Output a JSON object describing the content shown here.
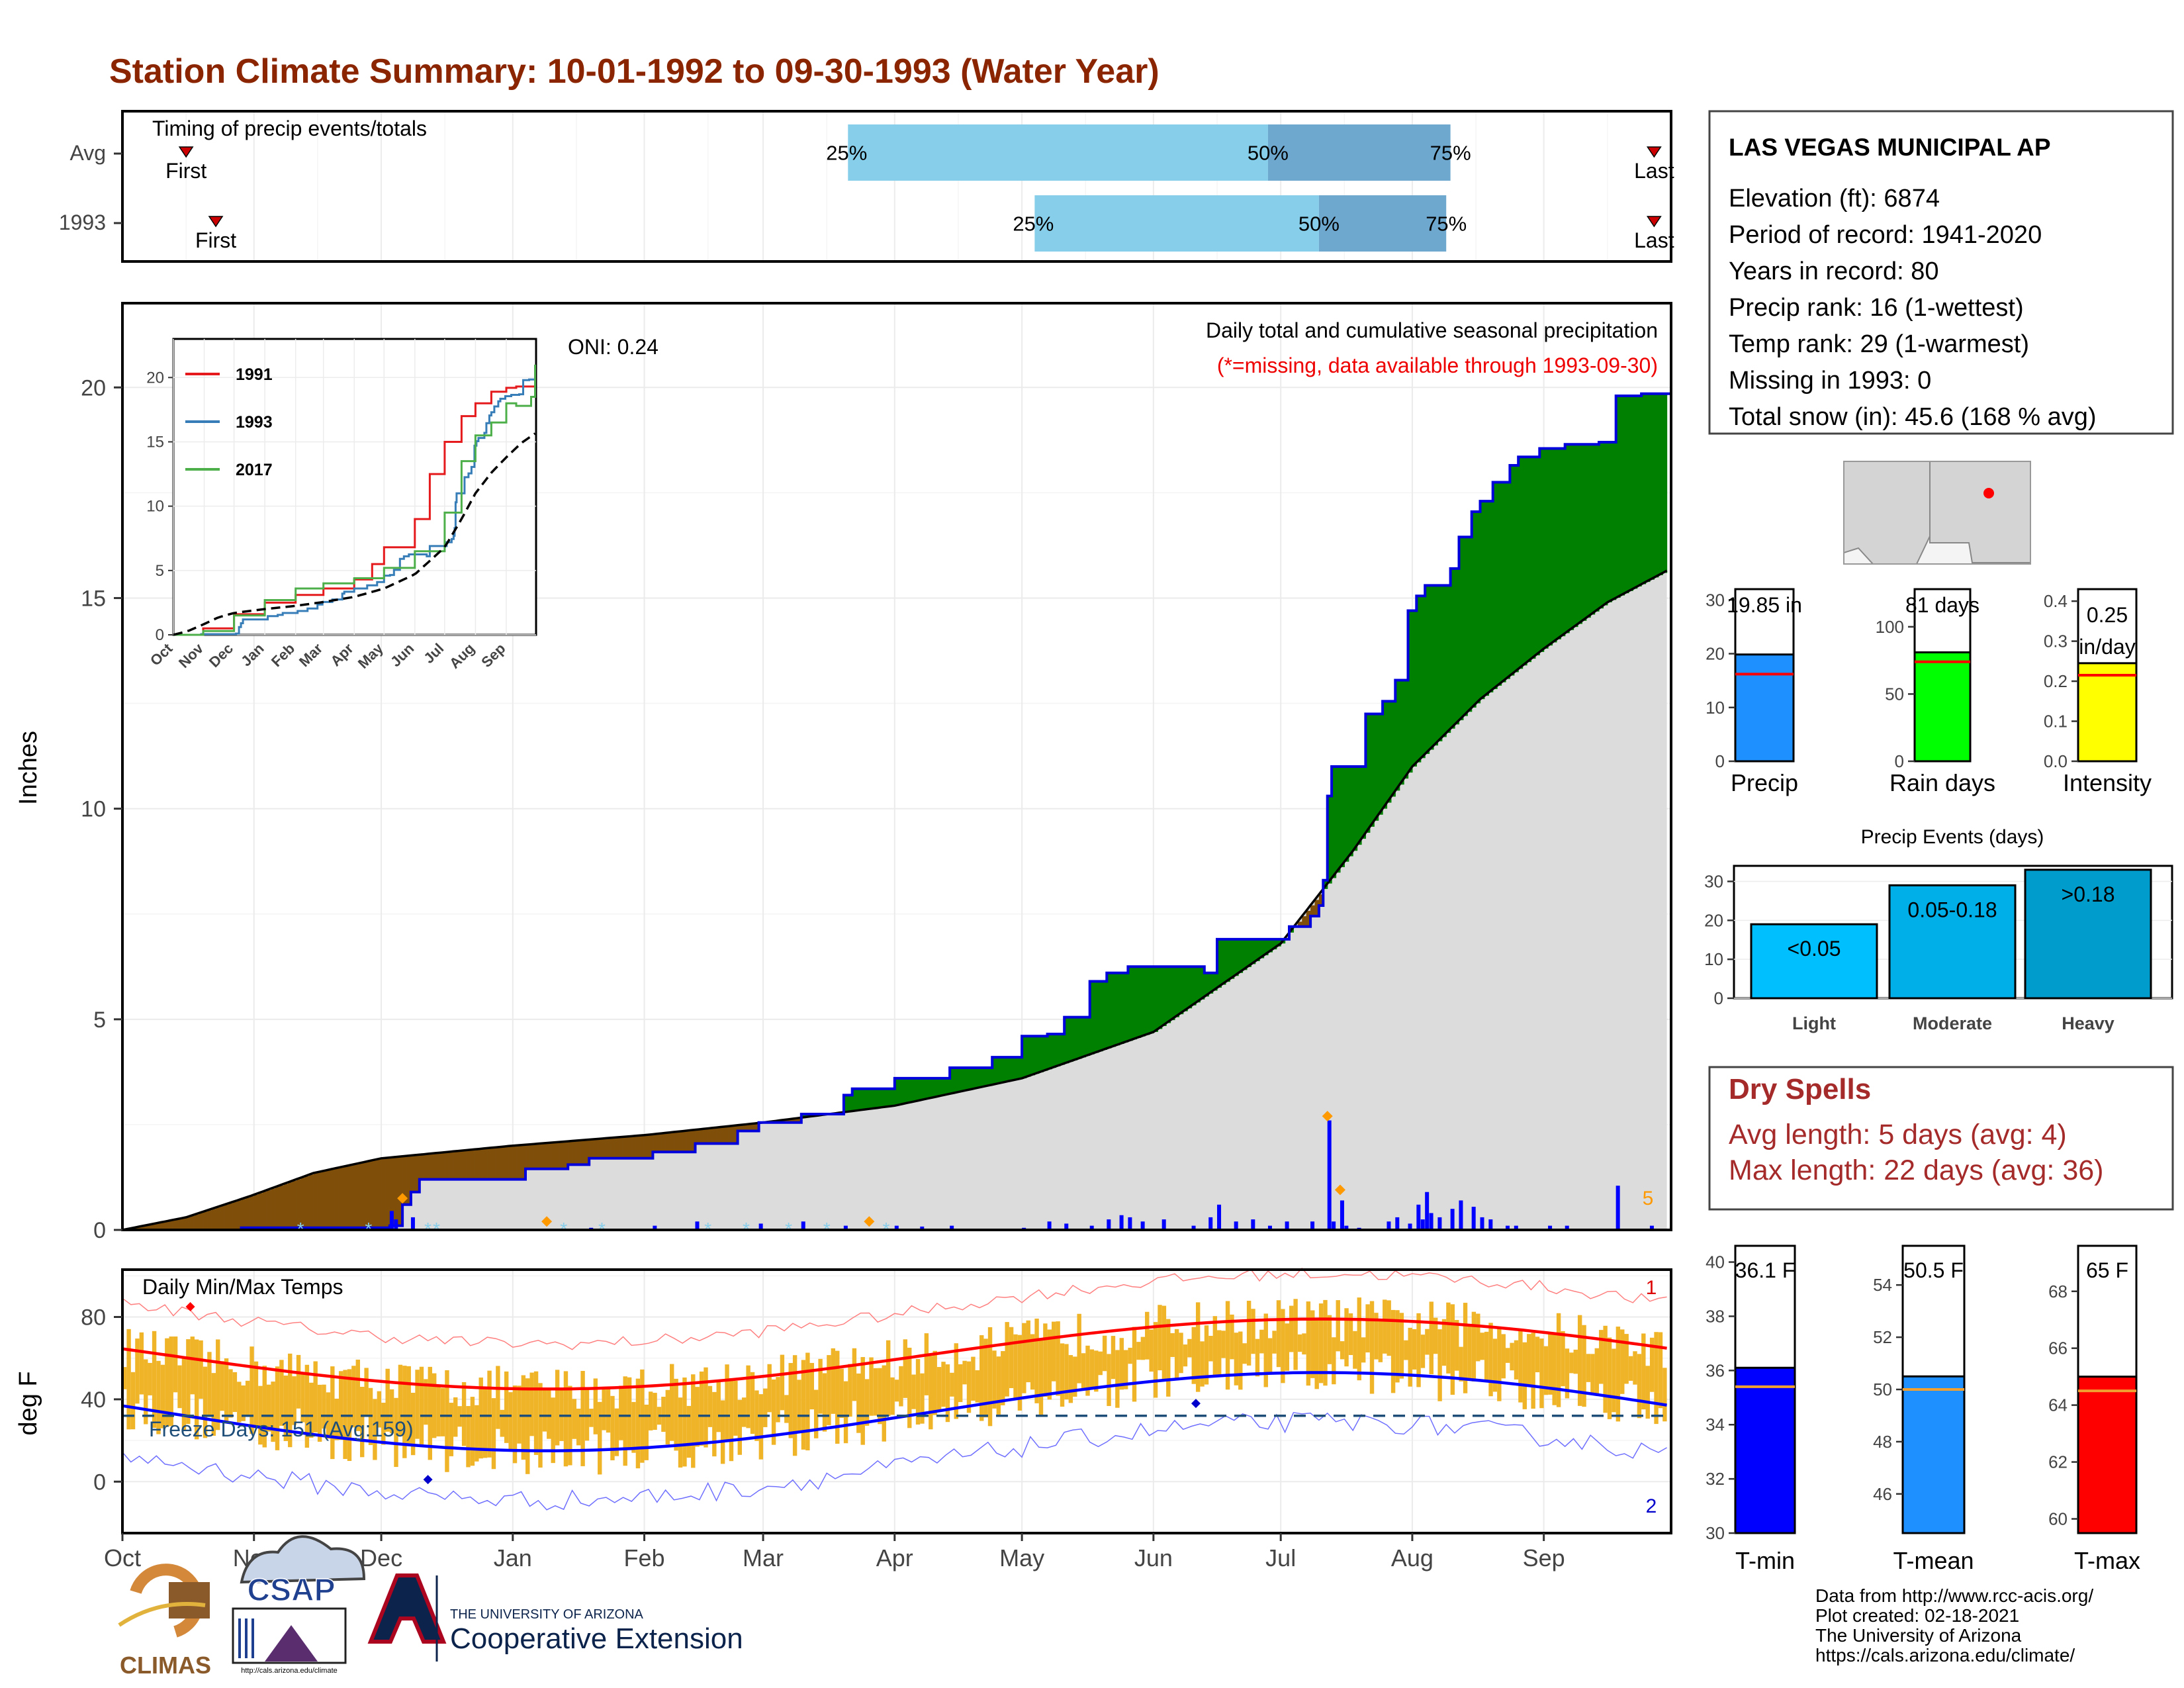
{
  "title": "Station Climate Summary: 10-01-1992 to 09-30-1993 (Water Year)",
  "timing": {
    "label": "Timing of precip events/totals",
    "rows": [
      {
        "name": "Avg",
        "first_label": "First",
        "last_label": "Last",
        "first_date": "1992-10-16",
        "last_date": "1993-09-27",
        "p25_date": "1993-03-21",
        "p50_date": "1993-06-28",
        "p75_date": "1993-08-10"
      },
      {
        "name": "1993",
        "first_label": "First",
        "last_label": "Last",
        "first_date": "1992-10-23",
        "last_date": "1993-09-27",
        "p25_date": "1993-05-04",
        "p50_date": "1993-07-10",
        "p75_date": "1993-08-09"
      }
    ],
    "pct_labels": [
      "25%",
      "50%",
      "75%"
    ],
    "colors": {
      "q1": "#87ceeb",
      "q2": "#6fa8cf",
      "marker": "#cc0000"
    }
  },
  "precip_panel": {
    "ylabel": "Inches",
    "oni": "ONI: 0.24",
    "note1": "Daily total and cumulative seasonal precipitation",
    "note2": "(*=missing, data available through 1993-09-30)",
    "max_label": "5",
    "ylim": [
      0,
      22
    ],
    "yticks": [
      0,
      5,
      10,
      15,
      20
    ],
    "colors": {
      "observed_line": "#0000dd",
      "above": "#008000",
      "below": "#7f4f0a",
      "avg_fill": "#dcdcdc",
      "bars": "#0000ff",
      "marker": "#ff9900"
    }
  },
  "inset": {
    "legend": [
      "1991",
      "1993",
      "2017"
    ],
    "colors": [
      "#e41a1c",
      "#377eb8",
      "#4daf4a"
    ],
    "xticks": [
      "Oct",
      "Nov",
      "Dec",
      "Jan",
      "Feb",
      "Mar",
      "Apr",
      "May",
      "Jun",
      "Jul",
      "Aug",
      "Sep"
    ],
    "yticks": [
      0,
      5,
      10,
      15,
      20
    ],
    "ylim": [
      0,
      23
    ]
  },
  "temp_panel": {
    "ylabel": "deg F",
    "title": "Daily Min/Max Temps",
    "freeze": "Freeze Days: 151 (Avg:159)",
    "label_top": "1",
    "label_bottom": "2",
    "yticks": [
      0,
      40,
      80
    ],
    "ylim": [
      -25,
      103
    ],
    "freeze_line": 32,
    "colors": {
      "bars": "#f0b429",
      "tmax": "#ff0000",
      "tmin": "#0000ff",
      "freeze": "#1f4e79"
    }
  },
  "xaxis": [
    "Oct",
    "Nov",
    "Dec",
    "Jan",
    "Feb",
    "Mar",
    "Apr",
    "May",
    "Jun",
    "Jul",
    "Aug",
    "Sep"
  ],
  "info": {
    "station": "LAS VEGAS MUNICIPAL AP",
    "lines": [
      "Elevation (ft): 6874",
      "Period of record: 1941-2020",
      "Years in record: 80",
      "Precip rank: 16 (1-wettest)",
      "Temp rank: 29 (1-warmest)",
      "Missing in 1993: 0",
      "Total snow (in): 45.6 (168 % avg)"
    ]
  },
  "summary_bars": [
    {
      "label": "Precip",
      "value_text": "19.85 in",
      "value": 19.85,
      "avg": 16.2,
      "ylim": [
        0,
        32
      ],
      "yticks": [
        0,
        10,
        20,
        30
      ],
      "color": "#1e90ff"
    },
    {
      "label": "Rain days",
      "value_text": "81 days",
      "value": 81,
      "avg": 74,
      "ylim": [
        0,
        128
      ],
      "yticks": [
        0,
        50,
        100
      ],
      "color": "#00ff00"
    },
    {
      "label": "Intensity",
      "value_text": "0.25 in/day",
      "value": 0.245,
      "avg": 0.215,
      "ylim": [
        0,
        0.43
      ],
      "yticks": [
        0.0,
        0.1,
        0.2,
        0.3,
        0.4
      ],
      "color": "#ffff00"
    }
  ],
  "precip_events": {
    "title": "Precip Events (days)",
    "categories": [
      "Light",
      "Moderate",
      "Heavy"
    ],
    "labels": [
      "<0.05",
      "0.05-0.18",
      ">0.18"
    ],
    "values": [
      19,
      29,
      33
    ],
    "ylim": [
      0,
      34
    ],
    "yticks": [
      0,
      10,
      20,
      30
    ],
    "colors": [
      "#00bfff",
      "#00aee8",
      "#009ccc"
    ]
  },
  "dry_spells": {
    "title": "Dry Spells",
    "line1": "Avg length: 5 days (avg: 4)",
    "line2": "Max length: 22 days (avg: 36)",
    "color": "#a52a2a"
  },
  "temp_bars": [
    {
      "label": "T-min",
      "value_text": "36.1 F",
      "value": 36.1,
      "avg": 35.4,
      "ylim": [
        30,
        40.6
      ],
      "yticks": [
        30,
        32,
        34,
        36,
        38,
        40
      ],
      "color": "#0000ff"
    },
    {
      "label": "T-mean",
      "value_text": "50.5 F",
      "value": 50.5,
      "avg": 50.0,
      "ylim": [
        44.5,
        55.5
      ],
      "yticks": [
        46,
        48,
        50,
        52,
        54
      ],
      "color": "#1e90ff"
    },
    {
      "label": "T-max",
      "value_text": "65 F",
      "value": 65.0,
      "avg": 64.5,
      "ylim": [
        59.5,
        69.6
      ],
      "yticks": [
        60,
        62,
        64,
        66,
        68
      ],
      "color": "#ff0000"
    }
  ],
  "footer": {
    "logos": [
      "CLIMAS",
      "CSAP"
    ],
    "csap_url": "http://cals.arizona.edu/climate",
    "ua_small": "THE UNIVERSITY OF ARIZONA",
    "ua_big": "Cooperative Extension",
    "credits": [
      "Data from http://www.rcc-acis.org/",
      "Plot created: 02-18-2021",
      "The University of Arizona",
      "https://cals.arizona.edu/climate/"
    ]
  }
}
